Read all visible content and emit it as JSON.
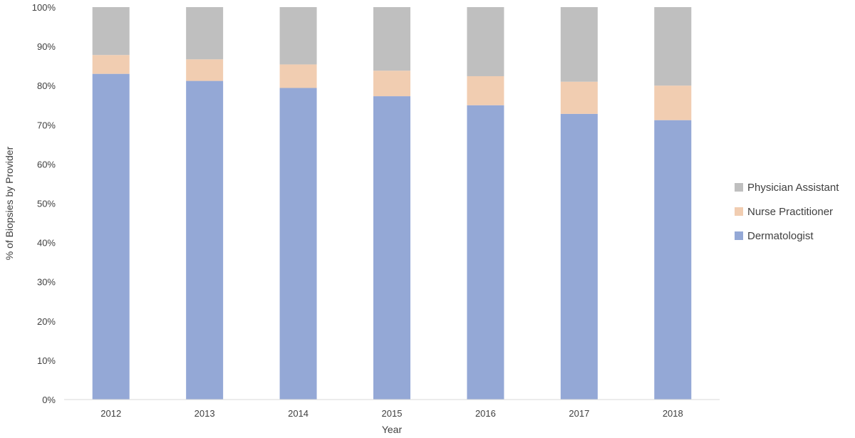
{
  "chart_data": {
    "type": "bar",
    "stacked": true,
    "title": "",
    "xlabel": "Year",
    "ylabel": "% of Biopsies by Provider",
    "categories": [
      "2012",
      "2013",
      "2014",
      "2015",
      "2016",
      "2017",
      "2018"
    ],
    "ylim": [
      0,
      100
    ],
    "yticks": [
      "0%",
      "10%",
      "20%",
      "30%",
      "40%",
      "50%",
      "60%",
      "70%",
      "80%",
      "90%",
      "100%"
    ],
    "grid": false,
    "legend_position": "right",
    "series": [
      {
        "name": "Dermatologist",
        "color": "#94A8D6",
        "values": [
          83,
          81.2,
          79.4,
          77.3,
          75,
          72.8,
          71.2
        ]
      },
      {
        "name": "Nurse Practitioner",
        "color": "#F1CDB1",
        "values": [
          4.8,
          5.5,
          6,
          6.5,
          7.4,
          8.2,
          8.8
        ]
      },
      {
        "name": "Physician Assistant",
        "color": "#BFBFBF",
        "values": [
          12.2,
          13.3,
          14.6,
          16.2,
          17.6,
          19,
          20
        ]
      }
    ],
    "legend_order": [
      "Physician Assistant",
      "Nurse Practitioner",
      "Dermatologist"
    ]
  }
}
